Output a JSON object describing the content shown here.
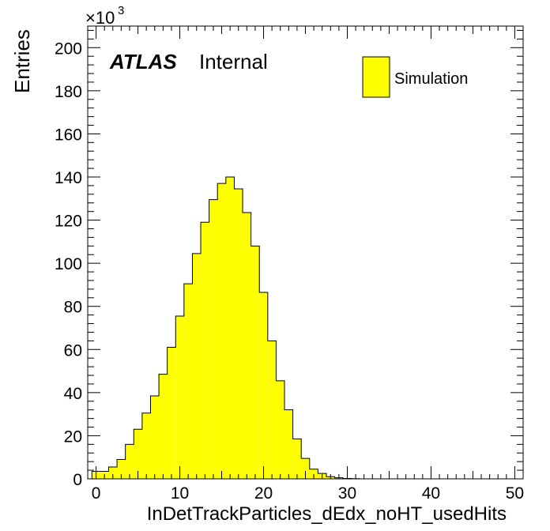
{
  "chart_data": {
    "type": "histogram",
    "title": "",
    "xlabel": "InDetTrackParticles_dEdx_noHT_usedHits",
    "ylabel": "Entries",
    "y_multiplier_label": "×10",
    "y_multiplier_exponent": "3",
    "xlim": [
      -1,
      51
    ],
    "ylim": [
      0,
      210
    ],
    "x_major_ticks": [
      0,
      10,
      20,
      30,
      40,
      50
    ],
    "y_major_ticks": [
      0,
      20,
      40,
      60,
      80,
      100,
      120,
      140,
      160,
      180,
      200
    ],
    "x_tick_labels": [
      "0",
      "10",
      "20",
      "30",
      "40",
      "50"
    ],
    "y_tick_labels": [
      "0",
      "20",
      "40",
      "60",
      "80",
      "100",
      "120",
      "140",
      "160",
      "180",
      "200"
    ],
    "bin_width": 1,
    "bin_edges_start": -0.5,
    "values": [
      3.5,
      3.5,
      5.5,
      9,
      16,
      23,
      30.5,
      38.5,
      48.5,
      61,
      75.5,
      90.5,
      104.5,
      119,
      129.5,
      137,
      140,
      134.5,
      123.5,
      108,
      86.5,
      64,
      45.5,
      32,
      18.5,
      9.5,
      4.5,
      2.5,
      1,
      0.5,
      0.2,
      0.1,
      0,
      0,
      0,
      0,
      0,
      0,
      0,
      0,
      0,
      0,
      0,
      0,
      0,
      0,
      0,
      0,
      0,
      0,
      0
    ],
    "fill_color": "#ffff00",
    "line_color": "#000000",
    "grid": false,
    "legend": {
      "placement": "top-right",
      "entries": [
        {
          "label": "Simulation",
          "color": "#ffff00"
        }
      ]
    },
    "annotations": {
      "atlas_label": "ATLAS",
      "atlas_sublabel": "Internal"
    }
  }
}
